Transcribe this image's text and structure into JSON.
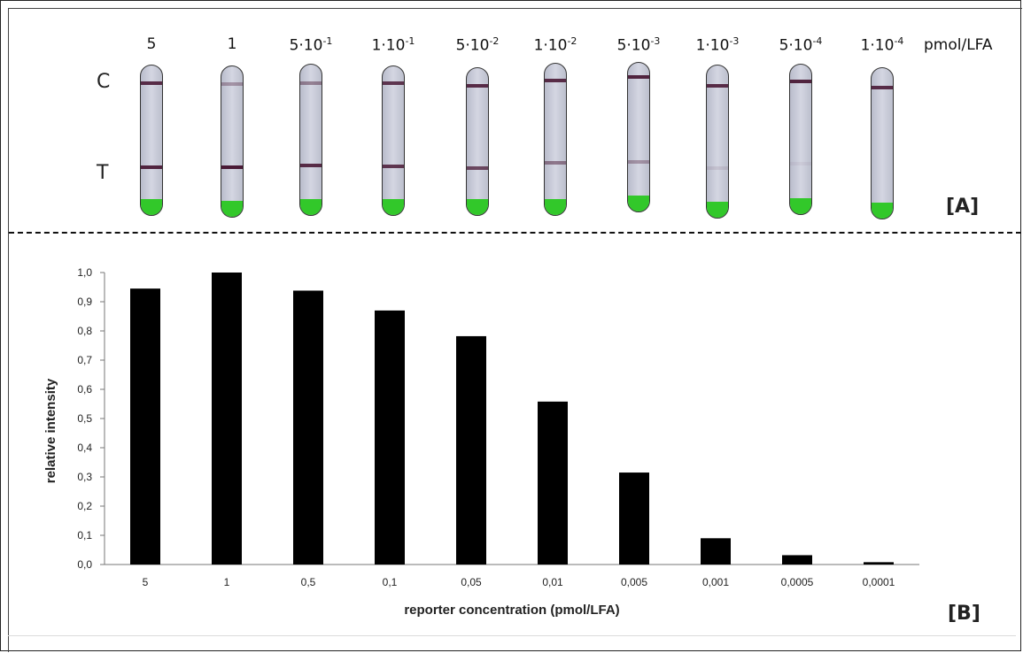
{
  "panel_a": {
    "unit": "pmol/LFA",
    "control_label": "C",
    "test_label": "T",
    "label": "[A]",
    "strips": [
      {
        "base": "5",
        "exp": "",
        "control_intensity": 0.9,
        "test_intensity": 0.95
      },
      {
        "base": "1",
        "exp": "",
        "control_intensity": 0.35,
        "test_intensity": 1.0
      },
      {
        "base": "5·10",
        "exp": "-1",
        "control_intensity": 0.45,
        "test_intensity": 0.9
      },
      {
        "base": "1·10",
        "exp": "-1",
        "control_intensity": 0.85,
        "test_intensity": 0.85
      },
      {
        "base": "5·10",
        "exp": "-2",
        "control_intensity": 0.9,
        "test_intensity": 0.75
      },
      {
        "base": "1·10",
        "exp": "-2",
        "control_intensity": 0.9,
        "test_intensity": 0.5
      },
      {
        "base": "5·10",
        "exp": "-3",
        "control_intensity": 0.95,
        "test_intensity": 0.35
      },
      {
        "base": "1·10",
        "exp": "-3",
        "control_intensity": 0.9,
        "test_intensity": 0.1
      },
      {
        "base": "5·10",
        "exp": "-4",
        "control_intensity": 0.95,
        "test_intensity": 0.05
      },
      {
        "base": "1·10",
        "exp": "-4",
        "control_intensity": 0.9,
        "test_intensity": 0.0
      }
    ]
  },
  "chart_data": {
    "type": "bar",
    "categories": [
      "5",
      "1",
      "0,5",
      "0,1",
      "0,05",
      "0,01",
      "0,005",
      "0,001",
      "0,0005",
      "0,0001"
    ],
    "values": [
      0.945,
      1.0,
      0.938,
      0.87,
      0.782,
      0.558,
      0.315,
      0.09,
      0.032,
      0.008
    ],
    "title": "",
    "xlabel": "reporter concentration (pmol/LFA)",
    "ylabel": "relative  intensity",
    "ylim": [
      0,
      1.0
    ],
    "yticks": [
      "0,0",
      "0,1",
      "0,2",
      "0,3",
      "0,4",
      "0,5",
      "0,6",
      "0,7",
      "0,8",
      "0,9",
      "1,0"
    ],
    "bar_color": "#000000",
    "grid": false,
    "legend": "none",
    "panel_label": "[B]"
  }
}
